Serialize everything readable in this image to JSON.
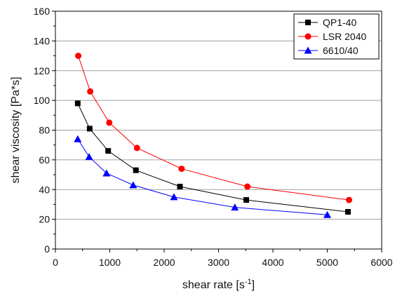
{
  "chart_data": {
    "type": "line",
    "xlabel": "shear rate [s",
    "xlabel_exponent": "-1",
    "xlabel_suffix": "]",
    "ylabel": "shear viscosity [Pa*s]",
    "xlim": [
      0,
      6000
    ],
    "ylim": [
      0,
      160
    ],
    "xticks": [
      0,
      1000,
      2000,
      3000,
      4000,
      5000,
      6000
    ],
    "yticks": [
      0,
      20,
      40,
      60,
      80,
      100,
      120,
      140,
      160
    ],
    "grid": "horizontal",
    "legend_position": "top-right",
    "series": [
      {
        "name": "QP1-40",
        "color": "#000000",
        "marker": "square",
        "x": [
          410,
          630,
          970,
          1480,
          2290,
          3510,
          5380
        ],
        "y": [
          98,
          81,
          66,
          53,
          42,
          33,
          25
        ]
      },
      {
        "name": "LSR 2040",
        "color": "#ff0000",
        "marker": "circle",
        "x": [
          420,
          640,
          990,
          1500,
          2320,
          3530,
          5400
        ],
        "y": [
          130,
          106,
          85,
          68,
          54,
          42,
          33
        ]
      },
      {
        "name": "6610/40",
        "color": "#0000ff",
        "marker": "triangle",
        "x": [
          410,
          620,
          940,
          1430,
          2180,
          3300,
          5000
        ],
        "y": [
          74,
          62,
          51,
          43,
          35,
          28,
          23
        ]
      }
    ]
  }
}
